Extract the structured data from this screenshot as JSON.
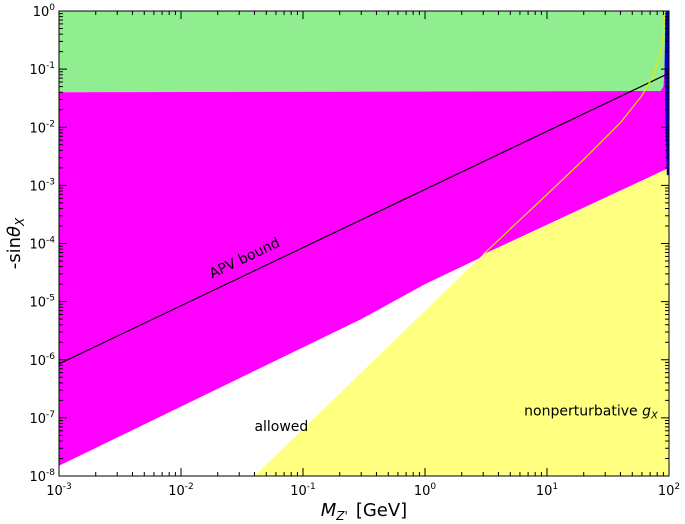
{
  "chart_data": {
    "type": "area",
    "title": "",
    "xlabel_main": "M",
    "xlabel_sub": "Z'",
    "xlabel_unit": "[GeV]",
    "ylabel_prefix": "-sin",
    "ylabel_theta": "θ",
    "ylabel_sub": "X",
    "xscale": "log",
    "yscale": "log",
    "xlim": [
      0.001,
      100
    ],
    "ylim": [
      1e-08,
      1
    ],
    "x_ticks": [
      {
        "value": 0.001,
        "base": "10",
        "exp": "-3"
      },
      {
        "value": 0.01,
        "base": "10",
        "exp": "-2"
      },
      {
        "value": 0.1,
        "base": "10",
        "exp": "-1"
      },
      {
        "value": 1,
        "base": "10",
        "exp": "0"
      },
      {
        "value": 10,
        "base": "10",
        "exp": "1"
      },
      {
        "value": 100,
        "base": "10",
        "exp": "2"
      }
    ],
    "y_ticks": [
      {
        "value": 1e-08,
        "base": "10",
        "exp": "-8"
      },
      {
        "value": 1e-07,
        "base": "10",
        "exp": "-7"
      },
      {
        "value": 1e-06,
        "base": "10",
        "exp": "-6"
      },
      {
        "value": 1e-05,
        "base": "10",
        "exp": "-5"
      },
      {
        "value": 0.0001,
        "base": "10",
        "exp": "-4"
      },
      {
        "value": 0.001,
        "base": "10",
        "exp": "-3"
      },
      {
        "value": 0.01,
        "base": "10",
        "exp": "-2"
      },
      {
        "value": 0.1,
        "base": "10",
        "exp": "-1"
      },
      {
        "value": 1,
        "base": "10",
        "exp": "0"
      }
    ],
    "grid": false,
    "regions": [
      {
        "color": "#90ee90",
        "polygon": [
          [
            0.001,
            0.04
          ],
          [
            85,
            0.042
          ],
          [
            90,
            0.05
          ],
          [
            92,
            0.1
          ],
          [
            93,
            0.5
          ],
          [
            93,
            1
          ],
          [
            0.001,
            1
          ]
        ]
      },
      {
        "color": "#ff00ff",
        "polygon": [
          [
            0.001,
            0.04
          ],
          [
            85,
            0.042
          ],
          [
            90,
            0.05
          ],
          [
            92,
            0.1
          ],
          [
            93,
            0.5
          ],
          [
            93,
            1
          ],
          [
            100,
            1
          ],
          [
            100,
            0.002
          ],
          [
            1.0,
            2e-05
          ],
          [
            0.3,
            5e-06
          ],
          [
            0.001,
            1.5e-08
          ]
        ]
      },
      {
        "color": "#ffff80",
        "polygon": [
          [
            0.04,
            1e-08
          ],
          [
            3.0,
            6.5e-05
          ],
          [
            100,
            0.002
          ],
          [
            100,
            1e-08
          ]
        ]
      },
      {
        "color": "#0000cc",
        "polygon": [
          [
            93,
            1
          ],
          [
            93,
            0.5
          ],
          [
            92,
            0.1
          ],
          [
            93,
            0.02
          ],
          [
            96,
            0.0015
          ],
          [
            100,
            0.0015
          ],
          [
            100,
            1
          ]
        ]
      }
    ],
    "lines": [
      {
        "name": "APV bound",
        "color": "#000000",
        "x": [
          0.001,
          100
        ],
        "y": [
          8.5e-07,
          0.085
        ]
      },
      {
        "color": "#e8e800",
        "x": [
          3.0,
          10,
          20,
          40,
          60,
          75,
          85,
          90,
          93
        ],
        "y": [
          6.5e-05,
          0.0007,
          0.0028,
          0.012,
          0.035,
          0.08,
          0.18,
          0.4,
          1.0
        ]
      }
    ],
    "annotations": [
      {
        "text": "APV bound",
        "x": 0.018,
        "y": 2.5e-05,
        "rotation_along": "APV bound"
      },
      {
        "text": "allowed",
        "x": 0.04,
        "y": 6e-08
      },
      {
        "text_main": "nonperturbative ",
        "text_math": "g",
        "text_sub": "X",
        "x": 6.5,
        "y": 1.1e-07
      }
    ]
  }
}
